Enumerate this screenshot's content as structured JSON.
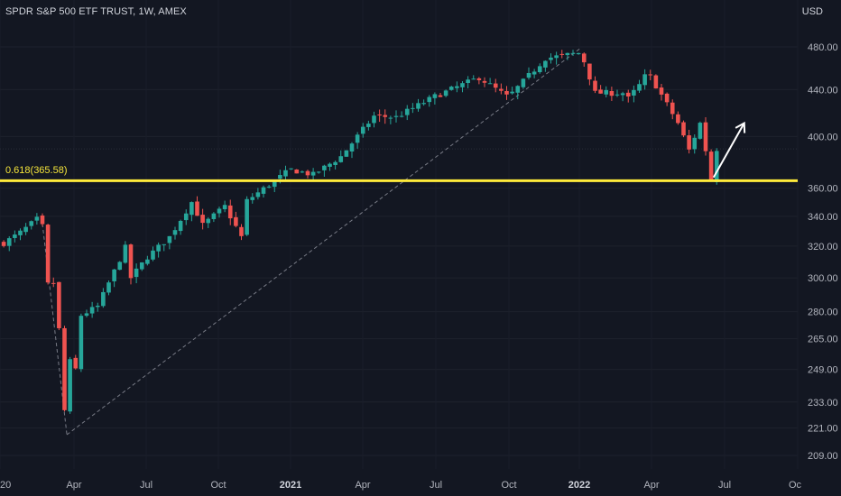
{
  "header": {
    "title": "SPDR S&P 500 ETF TRUST, 1W, AMEX",
    "currency": "USD"
  },
  "colors": {
    "background": "#131722",
    "up": "#26a69a",
    "down": "#ef5350",
    "fib_line": "#ffeb3b",
    "text": "#b2b5be"
  },
  "chart_data": {
    "type": "candlestick",
    "title": "SPDR S&P 500 ETF TRUST, 1W, AMEX",
    "y_axis": {
      "unit": "USD",
      "ticks": [
        209.0,
        221.0,
        233.0,
        249.0,
        265.0,
        280.0,
        300.0,
        320.0,
        340.0,
        360.0,
        400.0,
        440.0,
        480.0
      ],
      "scale": "log"
    },
    "x_axis": {
      "ticks": [
        "20",
        "Apr",
        "Jul",
        "Oct",
        "2021",
        "Apr",
        "Jul",
        "Oct",
        "2022",
        "Apr",
        "Jul",
        "Oc"
      ]
    },
    "fib_level": {
      "label": "0.618(365.58)",
      "value": 365.58
    },
    "trend_line": {
      "from": {
        "date": "2020-03-23",
        "price": 218
      },
      "to": {
        "date": "2022-01-03",
        "price": 479
      }
    },
    "projection_arrow": {
      "direction": "up",
      "from_date": "2022-06-20",
      "from_price": 368,
      "to_price": 411
    },
    "waypoints": [
      [
        "2020-01-03",
        322
      ],
      [
        "2020-01-24",
        329
      ],
      [
        "2020-02-14",
        338
      ],
      [
        "2020-02-21",
        333
      ],
      [
        "2020-02-28",
        296
      ],
      [
        "2020-03-06",
        297
      ],
      [
        "2020-03-13",
        270
      ],
      [
        "2020-03-20",
        229
      ],
      [
        "2020-03-27",
        253
      ],
      [
        "2020-04-03",
        249
      ],
      [
        "2020-04-10",
        278
      ],
      [
        "2020-05-01",
        283
      ],
      [
        "2020-06-05",
        319
      ],
      [
        "2020-06-12",
        300
      ],
      [
        "2020-07-03",
        313
      ],
      [
        "2020-07-31",
        326
      ],
      [
        "2020-08-28",
        350
      ],
      [
        "2020-09-11",
        334
      ],
      [
        "2020-10-09",
        347
      ],
      [
        "2020-10-30",
        326
      ],
      [
        "2020-11-06",
        351
      ],
      [
        "2020-12-31",
        374
      ],
      [
        "2021-01-29",
        370
      ],
      [
        "2021-03-05",
        384
      ],
      [
        "2021-04-16",
        417
      ],
      [
        "2021-05-14",
        416
      ],
      [
        "2021-07-02",
        434
      ],
      [
        "2021-08-27",
        451
      ],
      [
        "2021-10-01",
        434
      ],
      [
        "2021-10-08",
        437
      ],
      [
        "2021-11-19",
        469
      ],
      [
        "2021-12-31",
        474
      ],
      [
        "2022-01-07",
        466
      ],
      [
        "2022-01-21",
        437
      ],
      [
        "2022-02-25",
        437
      ],
      [
        "2022-03-04",
        432
      ],
      [
        "2022-03-18",
        444
      ],
      [
        "2022-03-25",
        452
      ],
      [
        "2022-04-01",
        452
      ],
      [
        "2022-04-22",
        427
      ],
      [
        "2022-05-06",
        411
      ],
      [
        "2022-05-20",
        389
      ],
      [
        "2022-06-03",
        411
      ],
      [
        "2022-06-10",
        389
      ],
      [
        "2022-06-17",
        366
      ],
      [
        "2022-06-24",
        390
      ]
    ]
  }
}
